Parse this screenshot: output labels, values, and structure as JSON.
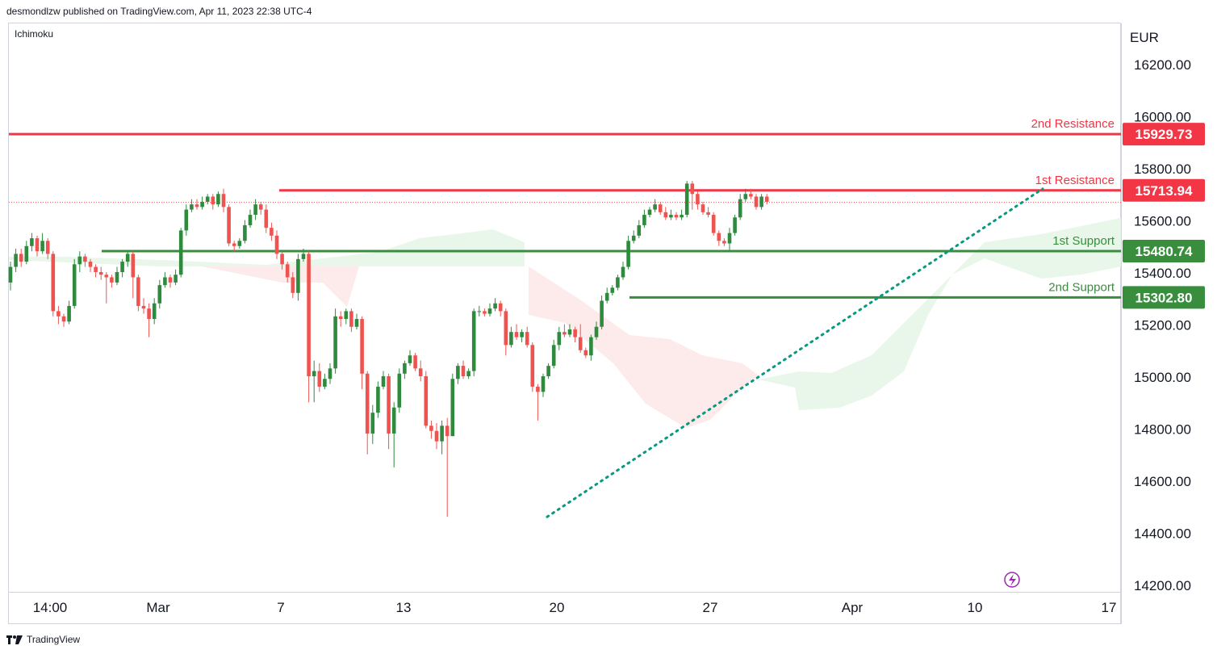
{
  "header": {
    "published_line": "desmondlzw published on TradingView.com, Apr 11, 2023 22:38 UTC-4"
  },
  "indicator": {
    "name": "Ichimoku"
  },
  "currency": "EUR",
  "footer": {
    "brand": "TradingView"
  },
  "colors": {
    "up": "#2e8b3e",
    "down": "#ef5350",
    "resistance": "#f23645",
    "support": "#388e3c",
    "trendline": "#089981",
    "cloud_green": "#e8f5e9",
    "cloud_red": "#fdeaea"
  },
  "chart_data": {
    "type": "candlestick",
    "y_axis": {
      "min": 14200,
      "max": 16300,
      "ticks": [
        16200,
        16000,
        15800,
        15600,
        15400,
        15200,
        15000,
        14800,
        14600,
        14400,
        14200
      ],
      "tick_labels": [
        "16200.00",
        "16000.00",
        "15800.00",
        "15600.00",
        "15400.00",
        "15200.00",
        "15000.00",
        "14800.00",
        "14600.00",
        "14400.00",
        "14200.00"
      ]
    },
    "x_axis": {
      "tick_labels": [
        "14:00",
        "Mar",
        "7",
        "13",
        "20",
        "27",
        "Apr",
        "10",
        "17"
      ]
    },
    "levels": [
      {
        "name": "2nd Resistance",
        "value": "15929.73",
        "price": 15929.73,
        "kind": "resistance"
      },
      {
        "name": "1st Resistance",
        "value": "15713.94",
        "price": 15713.94,
        "kind": "resistance"
      },
      {
        "name": "1st Support",
        "value": "15480.74",
        "price": 15480.74,
        "kind": "support"
      },
      {
        "name": "2nd Support",
        "value": "15302.80",
        "price": 15302.8,
        "kind": "support"
      }
    ],
    "last_price": 15668,
    "trendline": {
      "from": 14460,
      "to": 15720
    },
    "candles": [
      [
        15360,
        15420,
        15330,
        15440
      ],
      [
        15420,
        15470,
        15400,
        15490
      ],
      [
        15470,
        15440,
        15420,
        15490
      ],
      [
        15440,
        15500,
        15430,
        15520
      ],
      [
        15500,
        15530,
        15480,
        15550
      ],
      [
        15530,
        15480,
        15460,
        15540
      ],
      [
        15480,
        15520,
        15470,
        15550
      ],
      [
        15520,
        15470,
        15450,
        15530
      ],
      [
        15470,
        15250,
        15230,
        15480
      ],
      [
        15250,
        15230,
        15200,
        15270
      ],
      [
        15230,
        15210,
        15190,
        15240
      ],
      [
        15210,
        15270,
        15200,
        15290
      ],
      [
        15270,
        15430,
        15260,
        15450
      ],
      [
        15430,
        15460,
        15400,
        15480
      ],
      [
        15460,
        15440,
        15420,
        15470
      ],
      [
        15440,
        15420,
        15400,
        15450
      ],
      [
        15420,
        15400,
        15380,
        15430
      ],
      [
        15400,
        15390,
        15370,
        15420
      ],
      [
        15390,
        15380,
        15280,
        15400
      ],
      [
        15380,
        15360,
        15340,
        15390
      ],
      [
        15360,
        15400,
        15350,
        15420
      ],
      [
        15400,
        15440,
        15380,
        15450
      ],
      [
        15440,
        15470,
        15420,
        15480
      ],
      [
        15470,
        15380,
        15300,
        15480
      ],
      [
        15380,
        15270,
        15250,
        15390
      ],
      [
        15270,
        15260,
        15240,
        15300
      ],
      [
        15260,
        15220,
        15150,
        15280
      ],
      [
        15220,
        15280,
        15200,
        15300
      ],
      [
        15280,
        15350,
        15260,
        15370
      ],
      [
        15350,
        15380,
        15340,
        15400
      ],
      [
        15380,
        15360,
        15340,
        15390
      ],
      [
        15360,
        15390,
        15350,
        15410
      ],
      [
        15390,
        15560,
        15380,
        15570
      ],
      [
        15560,
        15640,
        15540,
        15660
      ],
      [
        15640,
        15660,
        15630,
        15680
      ],
      [
        15660,
        15650,
        15640,
        15680
      ],
      [
        15650,
        15670,
        15640,
        15690
      ],
      [
        15670,
        15690,
        15660,
        15700
      ],
      [
        15690,
        15660,
        15640,
        15700
      ],
      [
        15660,
        15700,
        15650,
        15710
      ],
      [
        15700,
        15650,
        15630,
        15720
      ],
      [
        15650,
        15510,
        15500,
        15660
      ],
      [
        15510,
        15500,
        15480,
        15520
      ],
      [
        15500,
        15520,
        15490,
        15530
      ],
      [
        15520,
        15580,
        15510,
        15600
      ],
      [
        15580,
        15620,
        15570,
        15640
      ],
      [
        15620,
        15660,
        15600,
        15680
      ],
      [
        15660,
        15640,
        15620,
        15670
      ],
      [
        15640,
        15570,
        15550,
        15660
      ],
      [
        15570,
        15540,
        15520,
        15590
      ],
      [
        15540,
        15470,
        15450,
        15560
      ],
      [
        15470,
        15430,
        15410,
        15480
      ],
      [
        15430,
        15380,
        15360,
        15440
      ],
      [
        15380,
        15320,
        15300,
        15400
      ],
      [
        15320,
        15450,
        15290,
        15470
      ],
      [
        15450,
        15470,
        15440,
        15490
      ],
      [
        15470,
        15000,
        14900,
        15480
      ],
      [
        15000,
        15020,
        14900,
        15060
      ],
      [
        15020,
        14960,
        14940,
        15050
      ],
      [
        14960,
        14990,
        14950,
        15010
      ],
      [
        14990,
        15030,
        14970,
        15050
      ],
      [
        15030,
        15230,
        15010,
        15260
      ],
      [
        15230,
        15220,
        15190,
        15250
      ],
      [
        15220,
        15250,
        15200,
        15260
      ],
      [
        15250,
        15190,
        15170,
        15260
      ],
      [
        15190,
        15220,
        15180,
        15240
      ],
      [
        15220,
        15010,
        14950,
        15230
      ],
      [
        15010,
        14780,
        14700,
        15020
      ],
      [
        14780,
        14860,
        14740,
        14890
      ],
      [
        14860,
        14960,
        14840,
        14980
      ],
      [
        14960,
        15000,
        14950,
        15020
      ],
      [
        15000,
        14780,
        14720,
        15010
      ],
      [
        14780,
        14880,
        14650,
        14900
      ],
      [
        14880,
        15010,
        14860,
        15030
      ],
      [
        15010,
        15050,
        14990,
        15060
      ],
      [
        15050,
        15080,
        15040,
        15100
      ],
      [
        15080,
        15030,
        15020,
        15090
      ],
      [
        15030,
        15000,
        14980,
        15060
      ],
      [
        15000,
        14810,
        14800,
        15020
      ],
      [
        14810,
        14790,
        14760,
        14830
      ],
      [
        14790,
        14750,
        14720,
        14820
      ],
      [
        14750,
        14810,
        14700,
        14830
      ],
      [
        14810,
        14770,
        14460,
        14840
      ],
      [
        14770,
        14990,
        14770,
        15010
      ],
      [
        14990,
        15040,
        14970,
        15050
      ],
      [
        15040,
        15000,
        14990,
        15060
      ],
      [
        15000,
        15020,
        14990,
        15030
      ],
      [
        15020,
        15250,
        15000,
        15260
      ],
      [
        15250,
        15250,
        15230,
        15270
      ],
      [
        15250,
        15240,
        15230,
        15260
      ],
      [
        15240,
        15260,
        15230,
        15280
      ],
      [
        15260,
        15280,
        15250,
        15300
      ],
      [
        15280,
        15250,
        15230,
        15290
      ],
      [
        15250,
        15120,
        15080,
        15260
      ],
      [
        15120,
        15170,
        15110,
        15190
      ],
      [
        15170,
        15150,
        15140,
        15200
      ],
      [
        15150,
        15170,
        15130,
        15180
      ],
      [
        15170,
        15120,
        15110,
        15190
      ],
      [
        15120,
        14960,
        14940,
        15130
      ],
      [
        14960,
        14940,
        14830,
        14970
      ],
      [
        14940,
        15000,
        14920,
        15010
      ],
      [
        15000,
        15040,
        14990,
        15050
      ],
      [
        15040,
        15120,
        15030,
        15140
      ],
      [
        15120,
        15170,
        15100,
        15190
      ],
      [
        15170,
        15160,
        15150,
        15200
      ],
      [
        15160,
        15180,
        15150,
        15200
      ],
      [
        15180,
        15150,
        15130,
        15190
      ],
      [
        15150,
        15100,
        15090,
        15200
      ],
      [
        15100,
        15080,
        15070,
        15110
      ],
      [
        15080,
        15150,
        15060,
        15160
      ],
      [
        15150,
        15190,
        15140,
        15210
      ],
      [
        15190,
        15290,
        15180,
        15310
      ],
      [
        15290,
        15320,
        15280,
        15340
      ],
      [
        15320,
        15340,
        15310,
        15350
      ],
      [
        15340,
        15380,
        15330,
        15390
      ],
      [
        15380,
        15420,
        15370,
        15440
      ],
      [
        15420,
        15520,
        15410,
        15540
      ],
      [
        15520,
        15540,
        15510,
        15560
      ],
      [
        15540,
        15580,
        15530,
        15600
      ],
      [
        15580,
        15620,
        15570,
        15640
      ],
      [
        15620,
        15640,
        15610,
        15650
      ],
      [
        15640,
        15660,
        15630,
        15680
      ],
      [
        15660,
        15630,
        15620,
        15670
      ],
      [
        15630,
        15610,
        15600,
        15650
      ],
      [
        15610,
        15620,
        15600,
        15640
      ],
      [
        15620,
        15610,
        15600,
        15630
      ],
      [
        15610,
        15620,
        15600,
        15640
      ],
      [
        15620,
        15740,
        15610,
        15750
      ],
      [
        15740,
        15700,
        15640,
        15750
      ],
      [
        15700,
        15660,
        15640,
        15710
      ],
      [
        15660,
        15630,
        15620,
        15670
      ],
      [
        15630,
        15620,
        15610,
        15650
      ],
      [
        15620,
        15550,
        15540,
        15630
      ],
      [
        15550,
        15520,
        15500,
        15560
      ],
      [
        15520,
        15510,
        15500,
        15530
      ],
      [
        15510,
        15550,
        15480,
        15570
      ],
      [
        15550,
        15610,
        15540,
        15620
      ],
      [
        15610,
        15680,
        15600,
        15700
      ],
      [
        15680,
        15700,
        15670,
        15720
      ],
      [
        15700,
        15690,
        15680,
        15720
      ],
      [
        15690,
        15650,
        15640,
        15700
      ],
      [
        15650,
        15690,
        15640,
        15700
      ],
      [
        15690,
        15670,
        15660,
        15700
      ]
    ]
  }
}
